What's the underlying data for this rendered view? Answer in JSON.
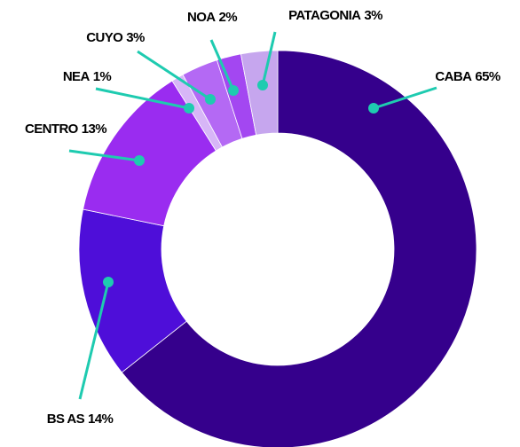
{
  "chart_data": {
    "type": "pie",
    "categories": [
      "CABA",
      "BS AS",
      "CENTRO",
      "NEA",
      "CUYO",
      "NOA",
      "PATAGONIA"
    ],
    "values": [
      65,
      14,
      13,
      1,
      3,
      2,
      3
    ],
    "value_labels": [
      "65%",
      "14%",
      "13%",
      "1%",
      "3%",
      "2%",
      "3%"
    ],
    "colors": [
      "#35008c",
      "#4e0ed9",
      "#9a2cf0",
      "#d7b6f7",
      "#b469f4",
      "#a347f1",
      "#c6a6ee"
    ]
  }
}
